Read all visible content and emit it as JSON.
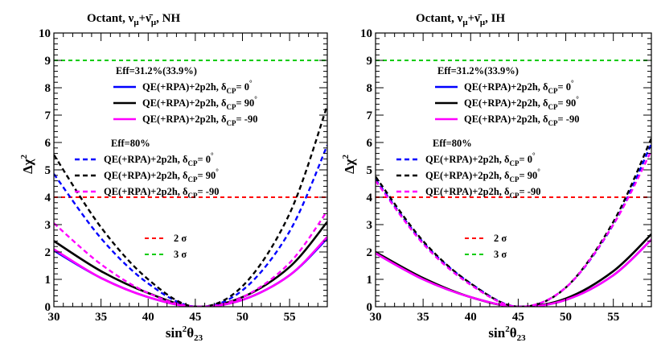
{
  "chart_data": [
    {
      "type": "line",
      "title": "Octant,  ν_μ+ν̄_μ, NH",
      "xlabel": "sin²θ₂₃",
      "ylabel": "Δχ²",
      "xlim": [
        30,
        59
      ],
      "ylim": [
        0,
        10
      ],
      "xticks": [
        30,
        35,
        40,
        45,
        50,
        55
      ],
      "yticks": [
        0,
        1,
        2,
        3,
        4,
        5,
        6,
        7,
        8,
        9,
        10
      ],
      "grid": false,
      "legend_groups": [
        {
          "heading": "Eff=31.2%(33.9%)",
          "entries": [
            {
              "label": "QE(+RPA)+2p2h,",
              "dcp_value": "0",
              "color": "#0000ff",
              "dash": false
            },
            {
              "label": "QE(+RPA)+2p2h,",
              "dcp_value": "90",
              "color": "#000000",
              "dash": false
            },
            {
              "label": "QE(+RPA)+2p2h,",
              "dcp_value": "-90",
              "color": "#ff00ff",
              "dash": false
            }
          ]
        },
        {
          "heading": "Eff=80%",
          "entries": [
            {
              "label": "QE(+RPA)+2p2h,",
              "dcp_value": "0",
              "color": "#0000ff",
              "dash": true
            },
            {
              "label": "QE(+RPA)+2p2h,",
              "dcp_value": "90",
              "color": "#000000",
              "dash": true
            },
            {
              "label": "QE(+RPA)+2p2h,",
              "dcp_value": "-90",
              "color": "#ff00ff",
              "dash": true
            }
          ]
        }
      ],
      "sigma_legend": [
        {
          "label": "2  σ",
          "color": "#ff0000"
        },
        {
          "label": "3  σ",
          "color": "#00cc00"
        }
      ],
      "reference_lines": [
        {
          "y": 4,
          "color": "#ff0000"
        },
        {
          "y": 9,
          "color": "#00cc00"
        }
      ],
      "series": [
        {
          "color": "#0000ff",
          "dash": false,
          "x": [
            30,
            35,
            40,
            45,
            50,
            55,
            59
          ],
          "y": [
            2.05,
            1.05,
            0.35,
            0.0,
            0.25,
            1.15,
            2.5
          ]
        },
        {
          "color": "#000000",
          "dash": false,
          "x": [
            30,
            35,
            40,
            45,
            50,
            55,
            59
          ],
          "y": [
            2.4,
            1.3,
            0.5,
            0.0,
            0.35,
            1.45,
            3.1
          ]
        },
        {
          "color": "#ff00ff",
          "dash": false,
          "x": [
            30,
            35,
            40,
            45,
            50,
            55,
            59
          ],
          "y": [
            2.1,
            1.05,
            0.35,
            0.0,
            0.25,
            1.15,
            2.55
          ]
        },
        {
          "color": "#0000ff",
          "dash": true,
          "x": [
            30,
            35,
            40,
            45,
            50,
            55,
            59
          ],
          "y": [
            4.85,
            2.5,
            0.85,
            0.0,
            0.6,
            2.75,
            5.9
          ]
        },
        {
          "color": "#000000",
          "dash": true,
          "x": [
            30,
            35,
            40,
            45,
            50,
            55,
            59
          ],
          "y": [
            5.55,
            2.9,
            1.0,
            0.0,
            0.75,
            3.4,
            7.35
          ]
        },
        {
          "color": "#ff00ff",
          "dash": true,
          "x": [
            30,
            35,
            40,
            45,
            50,
            55,
            59
          ],
          "y": [
            3.05,
            1.55,
            0.5,
            0.0,
            0.35,
            1.6,
            3.5
          ]
        }
      ]
    },
    {
      "type": "line",
      "title": "Octant,  ν_μ+ν̄_μ, IH",
      "xlabel": "sin²θ₂₃",
      "ylabel": "Δχ²",
      "xlim": [
        30,
        59
      ],
      "ylim": [
        0,
        10
      ],
      "xticks": [
        30,
        35,
        40,
        45,
        50,
        55
      ],
      "yticks": [
        0,
        1,
        2,
        3,
        4,
        5,
        6,
        7,
        8,
        9,
        10
      ],
      "grid": false,
      "legend_groups": [
        {
          "heading": "Eff=31.2%(33.9%)",
          "entries": [
            {
              "label": "QE(+RPA)+2p2h,",
              "dcp_value": "0",
              "color": "#0000ff",
              "dash": false
            },
            {
              "label": "QE(+RPA)+2p2h,",
              "dcp_value": "90",
              "color": "#000000",
              "dash": false
            },
            {
              "label": "QE(+RPA)+2p2h,",
              "dcp_value": "-90",
              "color": "#ff00ff",
              "dash": false
            }
          ]
        },
        {
          "heading": "Eff=80%",
          "entries": [
            {
              "label": "QE(+RPA)+2p2h,",
              "dcp_value": "0",
              "color": "#0000ff",
              "dash": true
            },
            {
              "label": "QE(+RPA)+2p2h,",
              "dcp_value": "90",
              "color": "#000000",
              "dash": true
            },
            {
              "label": "QE(+RPA)+2p2h,",
              "dcp_value": "-90",
              "color": "#ff00ff",
              "dash": true
            }
          ]
        }
      ],
      "sigma_legend": [
        {
          "label": "2  σ",
          "color": "#ff0000"
        },
        {
          "label": "3  σ",
          "color": "#00cc00"
        }
      ],
      "reference_lines": [
        {
          "y": 4,
          "color": "#ff0000"
        },
        {
          "y": 9,
          "color": "#00cc00"
        }
      ],
      "series": [
        {
          "color": "#0000ff",
          "dash": false,
          "x": [
            30,
            35,
            40,
            45,
            50,
            55,
            59
          ],
          "y": [
            1.95,
            1.0,
            0.35,
            0.0,
            0.25,
            1.15,
            2.45
          ]
        },
        {
          "color": "#000000",
          "dash": false,
          "x": [
            30,
            35,
            40,
            45,
            50,
            55,
            59
          ],
          "y": [
            2.0,
            1.05,
            0.35,
            0.0,
            0.3,
            1.3,
            2.65
          ]
        },
        {
          "color": "#ff00ff",
          "dash": false,
          "x": [
            30,
            35,
            40,
            45,
            50,
            55,
            59
          ],
          "y": [
            1.95,
            1.0,
            0.35,
            0.0,
            0.25,
            1.15,
            2.45
          ]
        },
        {
          "color": "#0000ff",
          "dash": true,
          "x": [
            30,
            35,
            40,
            45,
            50,
            55,
            59
          ],
          "y": [
            4.65,
            2.35,
            0.85,
            0.0,
            0.7,
            3.0,
            5.95
          ]
        },
        {
          "color": "#000000",
          "dash": true,
          "x": [
            30,
            35,
            40,
            45,
            50,
            55,
            59
          ],
          "y": [
            4.75,
            2.4,
            0.85,
            0.0,
            0.7,
            3.1,
            6.15
          ]
        },
        {
          "color": "#ff00ff",
          "dash": true,
          "x": [
            30,
            35,
            40,
            45,
            50,
            55,
            59
          ],
          "y": [
            4.6,
            2.3,
            0.8,
            0.0,
            0.7,
            3.0,
            5.7
          ]
        }
      ]
    }
  ]
}
